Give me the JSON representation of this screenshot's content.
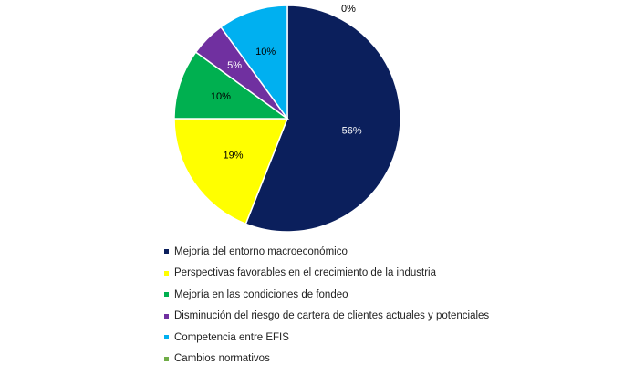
{
  "chart_data": {
    "type": "pie",
    "title": "",
    "categories": [
      "Mejoría del entorno macroeconómico",
      "Perspectivas favorables en el crecimiento de la industria",
      "Mejoría en las condiciones de fondeo",
      "Disminución del riesgo de cartera de clientes actuales y potenciales",
      "Competencia entre EFIS",
      "Cambios normativos"
    ],
    "values": [
      56,
      19,
      10,
      5,
      10,
      0
    ],
    "labels": [
      "56%",
      "19%",
      "10%",
      "5%",
      "10%",
      "0%"
    ],
    "colors": [
      "#0b1f5c",
      "#ffff00",
      "#00b050",
      "#7030a0",
      "#00b0f0",
      "#70ad47"
    ],
    "label_colors": [
      "#ffffff",
      "#000000",
      "#000000",
      "#ffffff",
      "#000000",
      "#000000"
    ],
    "legend_position": "bottom"
  }
}
